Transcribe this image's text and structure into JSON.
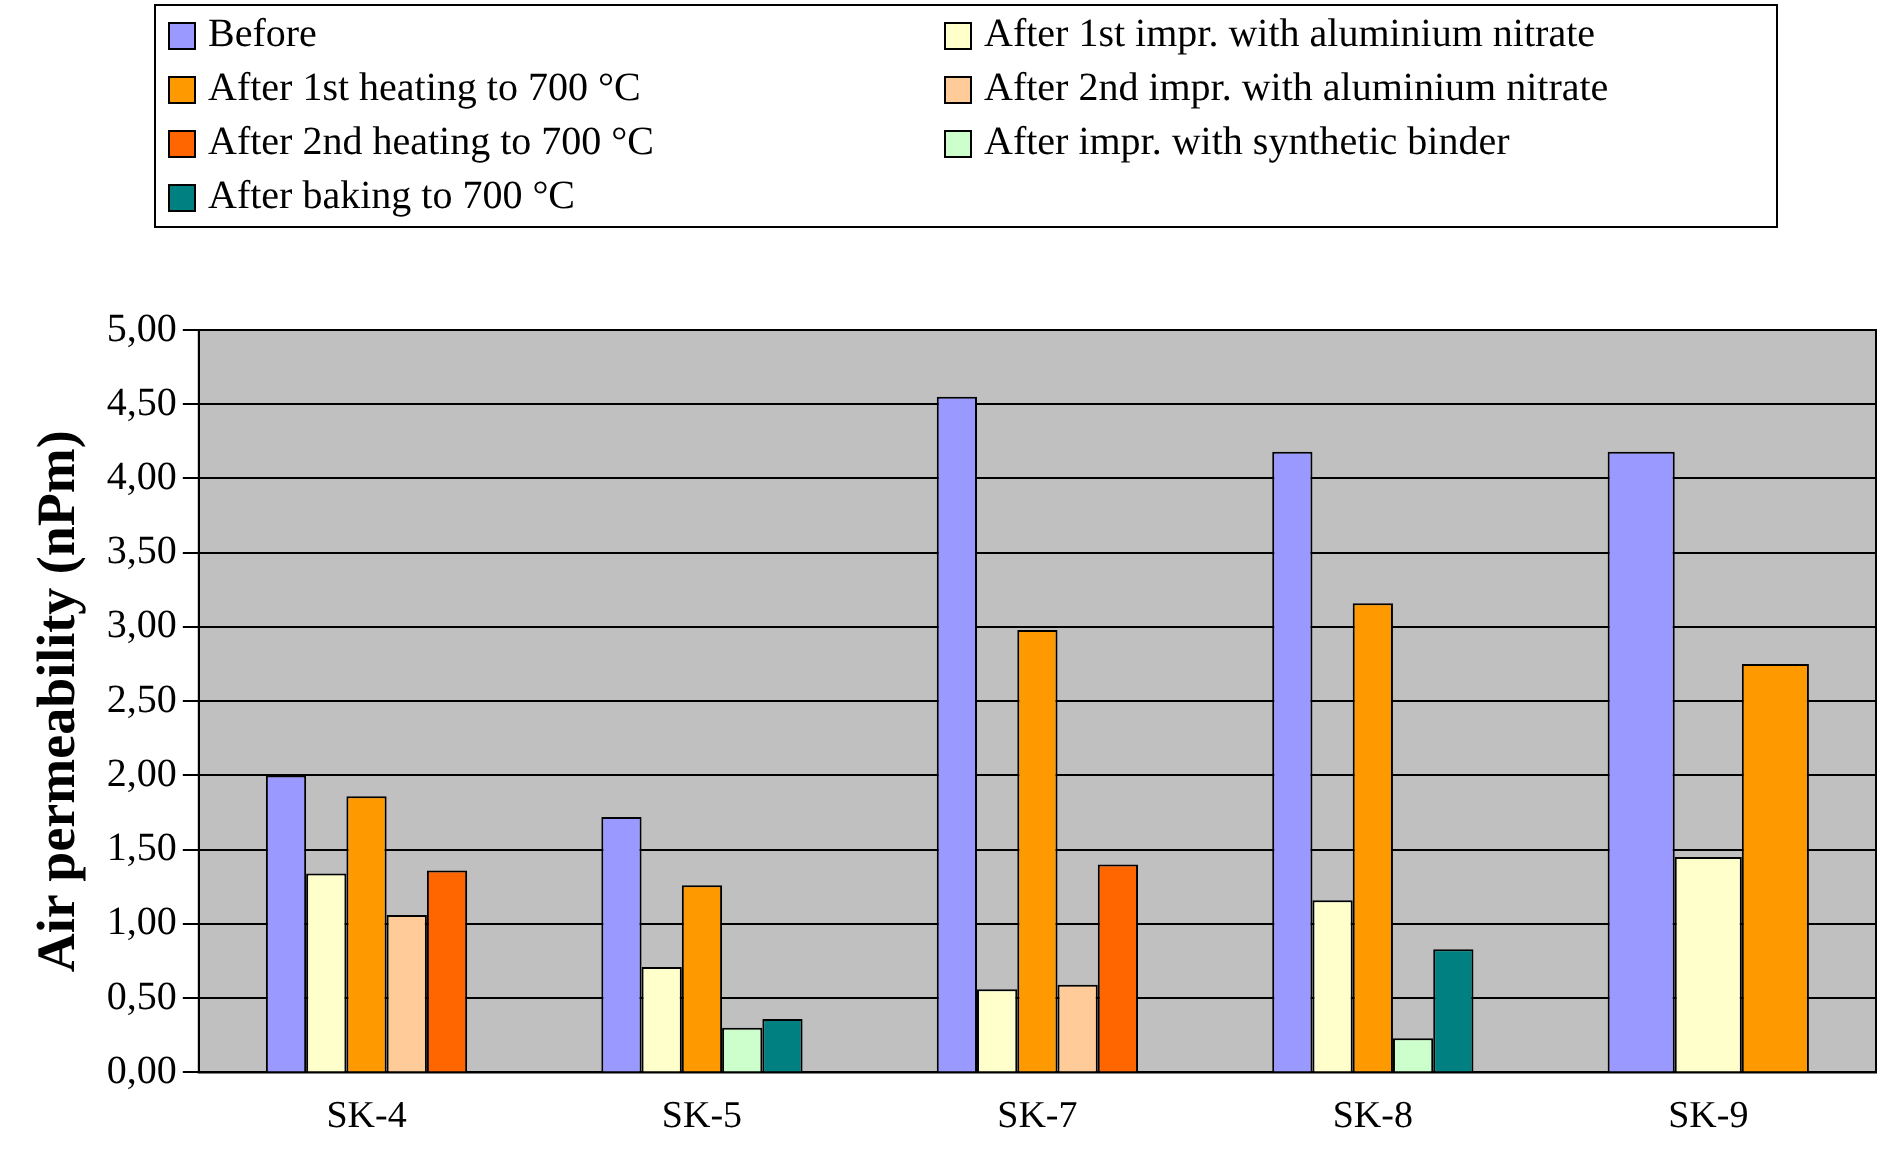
{
  "chart_data": {
    "type": "bar",
    "ylabel": "Air permeability (nPm)",
    "categories": [
      "SK-4",
      "SK-5",
      "SK-7",
      "SK-8",
      "SK-9"
    ],
    "series": [
      {
        "name": "Before",
        "color": "#9999ff",
        "values": [
          2.0,
          1.72,
          4.55,
          4.18,
          4.18
        ]
      },
      {
        "name": "After 1st impr. with aluminium nitrate",
        "color": "#ffffcc",
        "values": [
          1.34,
          0.71,
          0.56,
          1.16,
          1.45
        ]
      },
      {
        "name": "After 1st heating to 700 °C",
        "color": "#ff9900",
        "values": [
          1.86,
          1.26,
          2.98,
          3.16,
          2.75
        ]
      },
      {
        "name": "After 2nd impr. with aluminium nitrate",
        "color": "#ffcc99",
        "values": [
          1.06,
          null,
          0.59,
          null,
          null
        ]
      },
      {
        "name": "After 2nd heating to 700 °C",
        "color": "#ff6600",
        "values": [
          1.36,
          null,
          1.4,
          null,
          null
        ]
      },
      {
        "name": "After impr. with synthetic binder",
        "color": "#ccffcc",
        "values": [
          null,
          0.3,
          null,
          0.23,
          null
        ]
      },
      {
        "name": "After baking to 700 °C",
        "color": "#008080",
        "values": [
          null,
          0.36,
          null,
          0.83,
          null
        ]
      }
    ],
    "ylim": [
      0,
      5
    ],
    "yticks": [
      {
        "value": 0,
        "label": "0,00"
      },
      {
        "value": 0.5,
        "label": "0,50"
      },
      {
        "value": 1,
        "label": "1,00"
      },
      {
        "value": 1.5,
        "label": "1,50"
      },
      {
        "value": 2,
        "label": "2,00"
      },
      {
        "value": 2.5,
        "label": "2,50"
      },
      {
        "value": 3,
        "label": "3,00"
      },
      {
        "value": 3.5,
        "label": "3,50"
      },
      {
        "value": 4,
        "label": "4,00"
      },
      {
        "value": 4.5,
        "label": "4,50"
      },
      {
        "value": 5,
        "label": "5,00"
      }
    ],
    "grid": "y",
    "legend": "top"
  }
}
